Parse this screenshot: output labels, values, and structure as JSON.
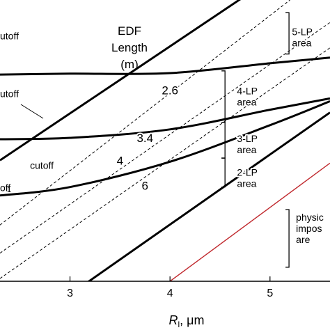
{
  "chart_data": {
    "type": "line",
    "xlabel": {
      "symbol": "R",
      "subscript": "l",
      "unit": ", μm"
    },
    "ylabel": "",
    "xlim": [
      2.3,
      5.6
    ],
    "ylim": [
      0,
      1
    ],
    "x_ticks": [
      3,
      4,
      5
    ],
    "x_tick_labels": [
      "3",
      "4",
      "5"
    ],
    "grid": false,
    "title_block": [
      "EDF",
      "Length",
      "(m)"
    ],
    "series": [
      {
        "kind": "cutoff",
        "style": "thick",
        "x": [
          2.3,
          3.0,
          4.0,
          5.0,
          5.6
        ],
        "y": [
          0.735,
          0.738,
          0.74,
          0.775,
          0.795
        ]
      },
      {
        "kind": "cutoff",
        "style": "thick",
        "x": [
          2.3,
          3.0,
          4.0,
          5.0,
          5.6
        ],
        "y": [
          0.505,
          0.51,
          0.54,
          0.61,
          0.65
        ]
      },
      {
        "kind": "cutoff",
        "style": "thick",
        "x": [
          2.3,
          3.0,
          4.0,
          5.0,
          5.6
        ],
        "y": [
          0.305,
          0.335,
          0.425,
          0.555,
          0.64
        ]
      },
      {
        "kind": "length",
        "label": "2.6",
        "style": "thick",
        "x": [
          2.3,
          4.9
        ],
        "y": [
          0.43,
          1.05
        ]
      },
      {
        "kind": "length",
        "label": "3.4",
        "style": "dashed",
        "x": [
          2.3,
          5.2
        ],
        "y": [
          0.2,
          1.0
        ]
      },
      {
        "kind": "length",
        "label": "4",
        "style": "dashed",
        "x": [
          2.3,
          5.6
        ],
        "y": [
          0.1,
          0.92
        ]
      },
      {
        "kind": "length",
        "label": "6",
        "style": "dashed",
        "x": [
          2.3,
          5.6
        ],
        "y": [
          0.01,
          0.83
        ]
      },
      {
        "kind": "boundary",
        "style": "thick",
        "x": [
          3.15,
          5.6
        ],
        "y": [
          -0.01,
          0.6
        ]
      },
      {
        "kind": "boundary",
        "style": "red",
        "x": [
          4.0,
          5.6
        ],
        "y": [
          0.0,
          0.42
        ]
      }
    ],
    "line_labels": [
      {
        "text": "2.6",
        "x": 4.0,
        "y": 0.665
      },
      {
        "text": "3.4",
        "x": 3.75,
        "y": 0.495
      },
      {
        "text": "4",
        "x": 3.5,
        "y": 0.415
      },
      {
        "text": "6",
        "x": 3.75,
        "y": 0.325
      }
    ],
    "cutoff_labels": [
      {
        "text": "utoff",
        "x": 2.3,
        "y": 0.86
      },
      {
        "text": "utoff",
        "x": 2.3,
        "y": 0.655
      },
      {
        "text": "cutoff",
        "x": 2.6,
        "y": 0.4
      },
      {
        "text": "off",
        "x": 2.3,
        "y": 0.32
      }
    ],
    "cutoff_label_fragment": "1",
    "area_labels": [
      {
        "lines": [
          "5-LP",
          "area"
        ],
        "x": 5.22,
        "y": 0.875
      },
      {
        "lines": [
          "4-LP",
          "area"
        ],
        "x": 4.67,
        "y": 0.665
      },
      {
        "lines": [
          "3-LP",
          "area"
        ],
        "x": 4.67,
        "y": 0.495
      },
      {
        "lines": [
          "2-LP",
          "area"
        ],
        "x": 4.67,
        "y": 0.375
      },
      {
        "lines": [
          "physic",
          "impos",
          "are"
        ],
        "x": 5.26,
        "y": 0.215
      }
    ],
    "brackets": [
      {
        "x": 5.19,
        "y_top": 0.955,
        "y_bot": 0.808
      },
      {
        "x": 4.55,
        "y_top": 0.748,
        "y_bot": 0.565
      },
      {
        "x": 4.55,
        "y_top": 0.565,
        "y_bot": 0.438
      },
      {
        "x": 4.55,
        "y_top": 0.438,
        "y_bot": 0.335
      },
      {
        "x": 5.19,
        "y_top": 0.255,
        "y_bot": 0.05
      }
    ]
  }
}
